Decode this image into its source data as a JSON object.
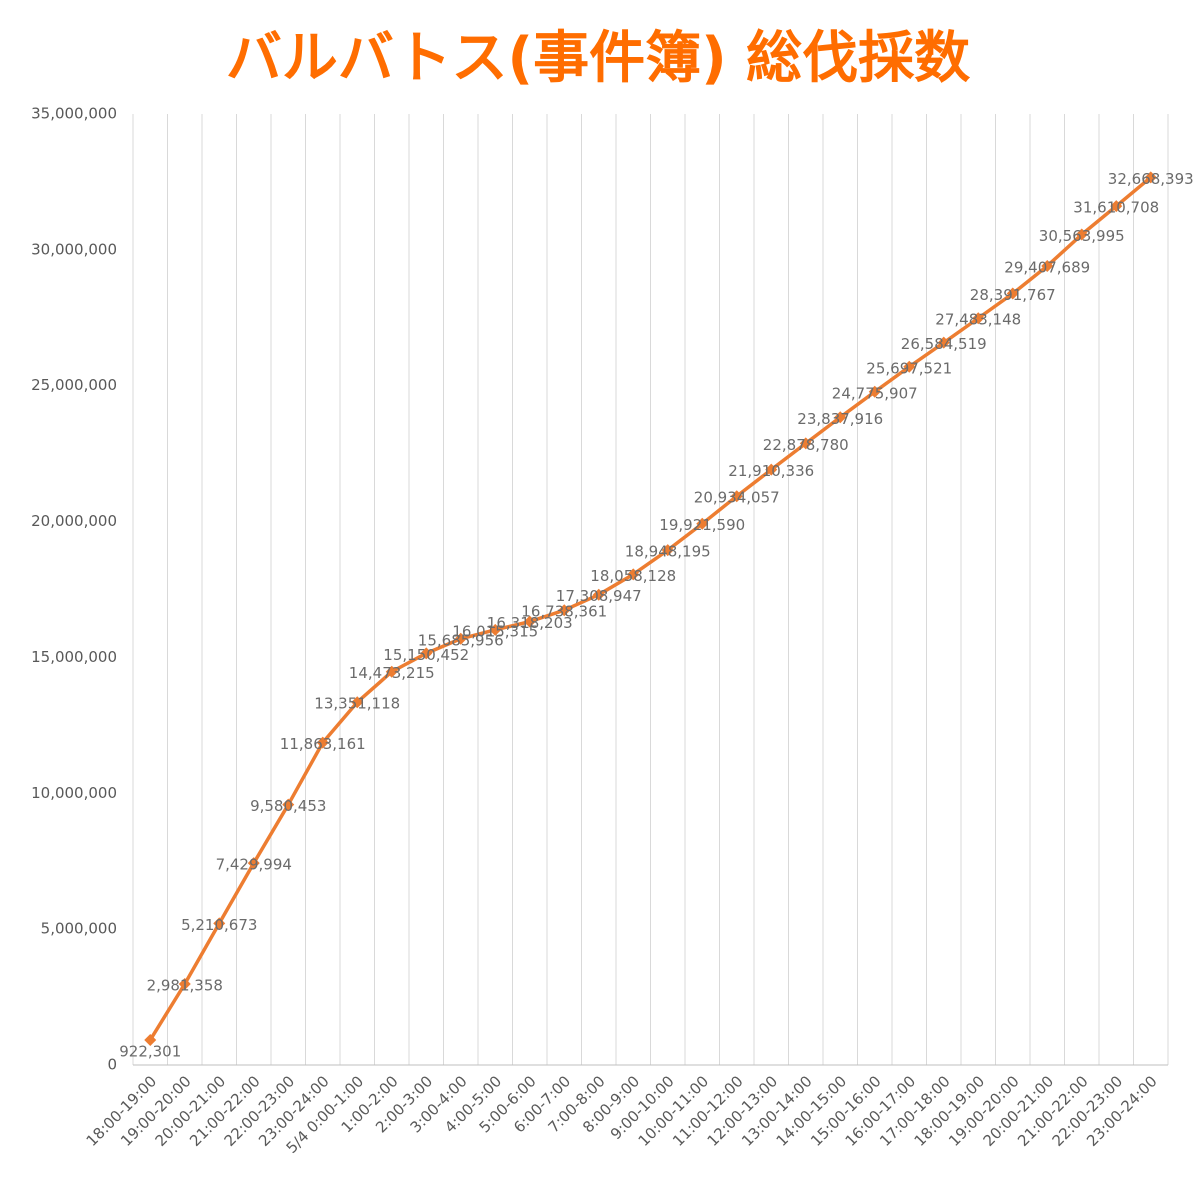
{
  "chart_data": {
    "type": "line",
    "title": "バルバトス(事件簿) 総伐採数",
    "categories": [
      "18:00-19:00",
      "19:00-20:00",
      "20:00-21:00",
      "21:00-22:00",
      "22:00-23:00",
      "23:00-24:00",
      "5/4 0:00-1:00",
      "1:00-2:00",
      "2:00-3:00",
      "3:00-4:00",
      "4:00-5:00",
      "5:00-6:00",
      "6:00-7:00",
      "7:00-8:00",
      "8:00-9:00",
      "9:00-10:00",
      "10:00-11:00",
      "11:00-12:00",
      "12:00-13:00",
      "13:00-14:00",
      "14:00-15:00",
      "15:00-16:00",
      "16:00-17:00",
      "17:00-18:00",
      "18:00-19:00",
      "19:00-20:00",
      "20:00-21:00",
      "21:00-22:00",
      "22:00-23:00",
      "23:00-24:00"
    ],
    "series": [
      {
        "color": "#ed7d31",
        "values": [
          922301,
          2981358,
          5210673,
          7429994,
          9580453,
          11863161,
          13351118,
          14473215,
          15150452,
          15685956,
          16015315,
          16318203,
          16738361,
          17308947,
          18058128,
          18948195,
          19921590,
          20934057,
          21910336,
          22878780,
          23837916,
          24775907,
          25697521,
          26584519,
          27483148,
          28391767,
          29407689,
          30563995,
          31610708,
          32668393
        ],
        "value_labels": [
          "922,301",
          "2,981,358",
          "5,210,673",
          "7,429,994",
          "9,580,453",
          "11,863,161",
          "13,351,118",
          "14,473,215",
          "15,150,452",
          "15,685,956",
          "16,015,315",
          "16,318,203",
          "16,738,361",
          "17,308,947",
          "18,058,128",
          "18,948,195",
          "19,921,590",
          "20,934,057",
          "21,910,336",
          "22,878,780",
          "23,837,916",
          "24,775,907",
          "25,697,521",
          "26,584,519",
          "27,483,148",
          "28,391,767",
          "29,407,689",
          "30,563,995",
          "31,610,708",
          "32,668,393"
        ]
      }
    ],
    "ylim": [
      0,
      35000000
    ],
    "yticks": [
      {
        "value": 0,
        "label": "0"
      },
      {
        "value": 5000000,
        "label": "5,000,000"
      },
      {
        "value": 10000000,
        "label": "10,000,000"
      },
      {
        "value": 15000000,
        "label": "15,000,000"
      },
      {
        "value": 20000000,
        "label": "20,000,000"
      },
      {
        "value": 25000000,
        "label": "25,000,000"
      },
      {
        "value": 30000000,
        "label": "30,000,000"
      },
      {
        "value": 35000000,
        "label": "35,000,000"
      }
    ]
  }
}
